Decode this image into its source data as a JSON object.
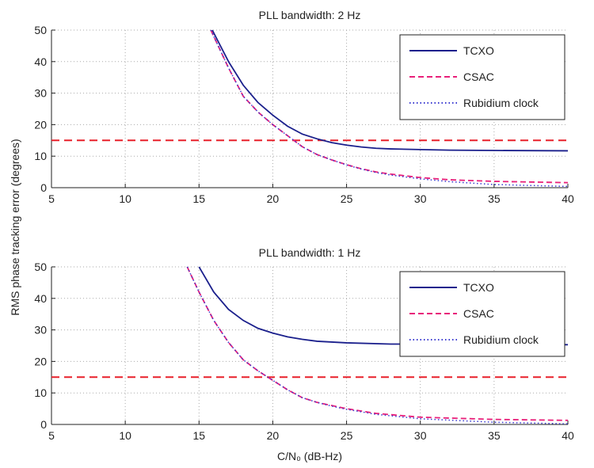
{
  "chart_data": [
    {
      "type": "line",
      "title": "PLL bandwidth: 2 Hz",
      "xlabel": "C/N₀ (dB-Hz)",
      "ylabel": "RMS phase tracking error (degrees)",
      "xlim": [
        5,
        40
      ],
      "ylim": [
        0,
        50
      ],
      "xticks": [
        5,
        10,
        15,
        20,
        25,
        30,
        35,
        40
      ],
      "yticks": [
        0,
        10,
        20,
        30,
        40,
        50
      ],
      "grid": true,
      "legend_position": "top-right",
      "threshold": {
        "y": 15,
        "color": "#e8202a",
        "style": "dashed"
      },
      "series": [
        {
          "name": "TCXO",
          "color": "#1a1f8c",
          "style": "solid",
          "x": [
            15.9,
            17,
            18,
            19,
            20,
            21,
            22,
            23,
            24,
            25,
            26,
            27,
            28,
            30,
            32,
            35,
            40
          ],
          "y": [
            50,
            40,
            32.5,
            27,
            23,
            19.5,
            17,
            15.5,
            14.3,
            13.5,
            12.9,
            12.5,
            12.3,
            12.1,
            11.9,
            11.8,
            11.7
          ]
        },
        {
          "name": "CSAC",
          "color": "#e8207a",
          "style": "dashed",
          "x": [
            15.8,
            17,
            18,
            19,
            20,
            21,
            22,
            23,
            24,
            25,
            26,
            27,
            28,
            30,
            32,
            35,
            40
          ],
          "y": [
            50,
            38,
            29,
            24,
            20,
            16.5,
            13,
            10.5,
            8.8,
            7.3,
            6,
            5,
            4.3,
            3.2,
            2.5,
            2,
            1.6
          ]
        },
        {
          "name": "Rubidium clock",
          "color": "#3a3ad0",
          "style": "dotted",
          "x": [
            15.8,
            17,
            18,
            19,
            20,
            21,
            22,
            23,
            24,
            25,
            26,
            27,
            28,
            30,
            32,
            35,
            40
          ],
          "y": [
            50,
            38,
            29,
            24,
            20,
            16.5,
            13,
            10.5,
            8.8,
            7.2,
            5.9,
            4.8,
            4.0,
            2.8,
            1.9,
            1.0,
            0.4
          ]
        }
      ]
    },
    {
      "type": "line",
      "title": "PLL bandwidth: 1 Hz",
      "xlim": [
        5,
        40
      ],
      "ylim": [
        0,
        50
      ],
      "xticks": [
        5,
        10,
        15,
        20,
        25,
        30,
        35,
        40
      ],
      "yticks": [
        0,
        10,
        20,
        30,
        40,
        50
      ],
      "grid": true,
      "legend_position": "top-right",
      "threshold": {
        "y": 15,
        "color": "#e8202a",
        "style": "dashed"
      },
      "series": [
        {
          "name": "TCXO",
          "color": "#1a1f8c",
          "style": "solid",
          "x": [
            15,
            16,
            17,
            18,
            19,
            20,
            21,
            22,
            23,
            25,
            28,
            30,
            35,
            40
          ],
          "y": [
            50,
            42,
            36.5,
            33,
            30.5,
            29,
            27.8,
            27,
            26.4,
            25.9,
            25.5,
            25.5,
            25.4,
            25.3
          ]
        },
        {
          "name": "CSAC",
          "color": "#e8207a",
          "style": "dashed",
          "x": [
            14.2,
            15,
            16,
            17,
            18,
            19,
            20,
            21,
            22,
            23,
            24,
            25,
            27,
            30,
            35,
            40
          ],
          "y": [
            50,
            42,
            33,
            26,
            20.5,
            17,
            14,
            11,
            8.5,
            7,
            6,
            5,
            3.5,
            2.3,
            1.6,
            1.3
          ]
        },
        {
          "name": "Rubidium clock",
          "color": "#3a3ad0",
          "style": "dotted",
          "x": [
            14.2,
            15,
            16,
            17,
            18,
            19,
            20,
            21,
            22,
            23,
            24,
            25,
            27,
            30,
            35,
            40
          ],
          "y": [
            50,
            42,
            33,
            26,
            20.5,
            17,
            14,
            11,
            8.5,
            7,
            5.8,
            4.8,
            3.2,
            1.8,
            0.7,
            0.2
          ]
        }
      ]
    }
  ]
}
